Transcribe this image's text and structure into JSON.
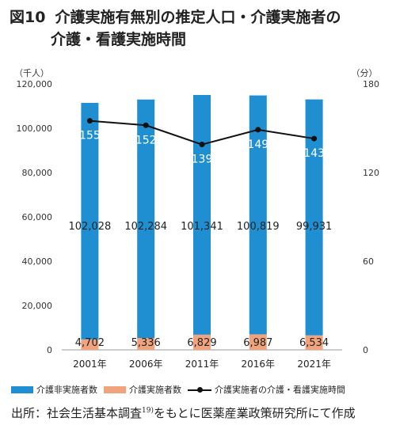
{
  "figure": {
    "number": "図10",
    "title_line1": "介護実施有無別の推定人口・介護実施者の",
    "title_line2": "介護・看護実施時間"
  },
  "chart_data": {
    "type": "bar+line",
    "categories": [
      "2001年",
      "2006年",
      "2011年",
      "2016年",
      "2021年"
    ],
    "left_axis": {
      "unit_label": "（千人）",
      "range": [
        0,
        120000
      ],
      "ticks": [
        "0",
        "20,000",
        "40,000",
        "60,000",
        "80,000",
        "100,000",
        "120,000"
      ]
    },
    "right_axis": {
      "unit_label": "（分）",
      "range": [
        0,
        180
      ],
      "ticks": [
        "0",
        "60",
        "120",
        "180"
      ]
    },
    "series": [
      {
        "name": "介護非実施者数",
        "kind": "bar",
        "axis": "left",
        "color": "#1f8fd2",
        "values": [
          106730,
          107620,
          108170,
          107806,
          106465
        ],
        "labels": [
          "102,028",
          "102,284",
          "101,341",
          "100,819",
          "99,931"
        ]
      },
      {
        "name": "介護実施者数",
        "kind": "bar",
        "axis": "left",
        "color": "#f0a37c",
        "values": [
          4702,
          5336,
          6829,
          6987,
          6534
        ],
        "labels": [
          "4,702",
          "5,336",
          "6,829",
          "6,987",
          "6,534"
        ]
      },
      {
        "name": "介護実施者の介護・看護実施時間",
        "kind": "line",
        "axis": "right",
        "color": "#111111",
        "values": [
          155,
          152,
          139,
          149,
          143
        ],
        "labels": [
          "155",
          "152",
          "139",
          "149",
          "143"
        ]
      }
    ],
    "grid": false,
    "legend_position": "bottom"
  },
  "source": {
    "prefix": "出所：社会生活基本調査",
    "ref": "19)",
    "suffix": "をもとに医薬産業政策研究所にて作成"
  }
}
